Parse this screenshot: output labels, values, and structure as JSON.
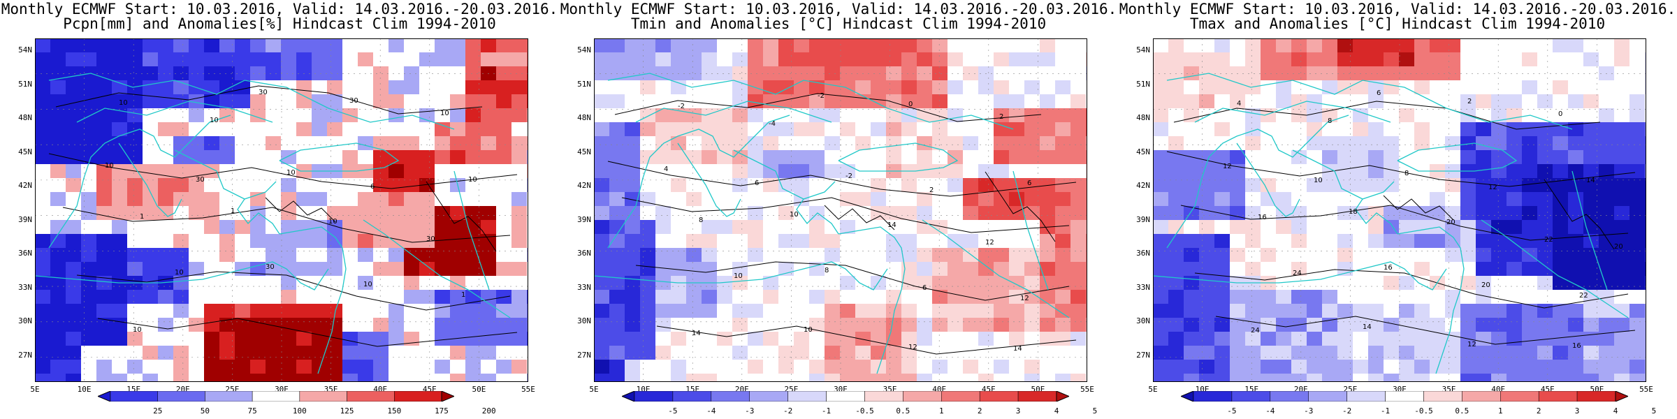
{
  "panels": [
    {
      "title_line1": "Monthly ECMWF Start: 10.03.2016, Valid: 14.03.2016.-20.03.2016.",
      "title_line2": "Pcpn[mm] and Anomalies[%] Hindcast Clim 1994-2010",
      "scale": "precip",
      "colorbar_labels": [
        "25",
        "50",
        "75",
        "100",
        "125",
        "150",
        "175",
        "200"
      ],
      "contour_labels": [
        "10",
        "10",
        "30",
        "30",
        "10",
        "10",
        "30",
        "10",
        "6",
        "10",
        "1",
        "1",
        "10",
        "30",
        "10",
        "30",
        "10",
        "1",
        "10"
      ]
    },
    {
      "title_line1": "Monthly ECMWF Start: 10.03.2016, Valid: 14.03.2016.-20.03.2016.",
      "title_line2": "Tmin and Anomalies [°C] Hindcast Clim 1994-2010",
      "scale": "temp",
      "colorbar_labels": [
        "-5",
        "-4",
        "-3",
        "-2",
        "-1",
        "-0.5",
        "0.5",
        "1",
        "2",
        "3",
        "4",
        "5"
      ],
      "contour_labels": [
        "-2",
        "-4",
        "-2",
        "0",
        "2",
        "4",
        "6",
        "-2",
        "2",
        "6",
        "8",
        "10",
        "14",
        "12",
        "10",
        "8",
        "6",
        "12",
        "14",
        "10",
        "12",
        "14"
      ]
    },
    {
      "title_line1": "Monthly ECMWF Start: 10.03.2016, Valid: 14.03.2016.-20.03.2016.",
      "title_line2": "Tmax and Anomalies [°C] Hindcast Clim 1994-2010",
      "scale": "temp",
      "colorbar_labels": [
        "-5",
        "-4",
        "-3",
        "-2",
        "-1",
        "-0.5",
        "0.5",
        "1",
        "2",
        "3",
        "4",
        "5"
      ],
      "contour_labels": [
        "4",
        "8",
        "6",
        "2",
        "0",
        "12",
        "10",
        "8",
        "12",
        "14",
        "16",
        "18",
        "20",
        "22",
        "24",
        "16",
        "20",
        "22",
        "24",
        "14",
        "12",
        "16",
        "20"
      ]
    }
  ],
  "latitude_labels": [
    "54N",
    "51N",
    "48N",
    "45N",
    "42N",
    "39N",
    "36N",
    "33N",
    "30N",
    "27N"
  ],
  "longitude_labels": [
    "5E",
    "10E",
    "15E",
    "20E",
    "25E",
    "30E",
    "35E",
    "40E",
    "45E",
    "50E",
    "55E"
  ],
  "colors": {
    "coast_line": "#20c8c8",
    "contour_line": "#000000",
    "precip_scale": [
      "#1a1ad0",
      "#3a3ae8",
      "#6a6af0",
      "#a8a8f5",
      "#ffffff",
      "#f5a8a8",
      "#ec6060",
      "#d82020",
      "#a00000"
    ],
    "temp_scale": [
      "#1010b0",
      "#2828d8",
      "#4c4ce8",
      "#7878f0",
      "#a8a8f5",
      "#d8d8fa",
      "#ffffff",
      "#fad8d8",
      "#f5a8a8",
      "#f07878",
      "#e84c4c",
      "#d82828",
      "#b01010"
    ]
  }
}
